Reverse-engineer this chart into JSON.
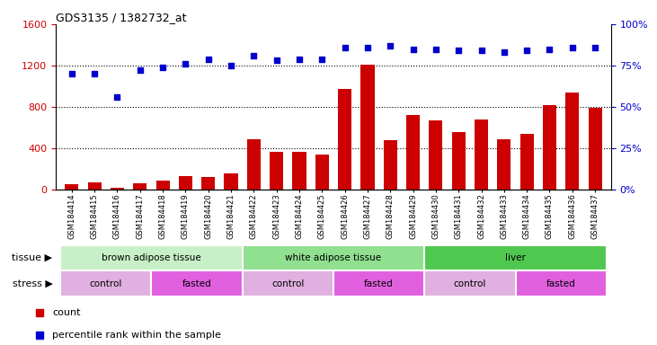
{
  "title": "GDS3135 / 1382732_at",
  "samples": [
    "GSM184414",
    "GSM184415",
    "GSM184416",
    "GSM184417",
    "GSM184418",
    "GSM184419",
    "GSM184420",
    "GSM184421",
    "GSM184422",
    "GSM184423",
    "GSM184424",
    "GSM184425",
    "GSM184426",
    "GSM184427",
    "GSM184428",
    "GSM184429",
    "GSM184430",
    "GSM184431",
    "GSM184432",
    "GSM184433",
    "GSM184434",
    "GSM184435",
    "GSM184436",
    "GSM184437"
  ],
  "counts": [
    55,
    70,
    20,
    65,
    90,
    130,
    120,
    160,
    490,
    370,
    370,
    340,
    970,
    1210,
    480,
    720,
    670,
    560,
    680,
    490,
    540,
    820,
    940,
    790
  ],
  "percentile_pct": [
    70,
    70,
    56,
    72,
    74,
    76,
    79,
    75,
    81,
    78,
    79,
    79,
    86,
    86,
    87,
    85,
    85,
    84,
    84,
    83,
    84,
    85,
    86,
    86
  ],
  "bar_color": "#cc0000",
  "dot_color": "#0000cc",
  "left_ylim": [
    0,
    1600
  ],
  "left_yticks": [
    0,
    400,
    800,
    1200,
    1600
  ],
  "right_ylim": [
    0,
    100
  ],
  "right_yticks": [
    0,
    25,
    50,
    75,
    100
  ],
  "right_yticklabels": [
    "0%",
    "25%",
    "50%",
    "75%",
    "100%"
  ],
  "tissue_groups": [
    {
      "label": "brown adipose tissue",
      "start": 0,
      "end": 8,
      "color": "#c8f0c8"
    },
    {
      "label": "white adipose tissue",
      "start": 8,
      "end": 16,
      "color": "#90e090"
    },
    {
      "label": "liver",
      "start": 16,
      "end": 24,
      "color": "#50c850"
    }
  ],
  "stress_groups": [
    {
      "label": "control",
      "start": 0,
      "end": 4,
      "color": "#e0b0e0"
    },
    {
      "label": "fasted",
      "start": 4,
      "end": 8,
      "color": "#e060e0"
    },
    {
      "label": "control",
      "start": 8,
      "end": 12,
      "color": "#e0b0e0"
    },
    {
      "label": "fasted",
      "start": 12,
      "end": 16,
      "color": "#e060e0"
    },
    {
      "label": "control",
      "start": 16,
      "end": 20,
      "color": "#e0b0e0"
    },
    {
      "label": "fasted",
      "start": 20,
      "end": 24,
      "color": "#e060e0"
    }
  ],
  "legend_count_label": "count",
  "legend_pct_label": "percentile rank within the sample",
  "tissue_label": "tissue",
  "stress_label": "stress"
}
